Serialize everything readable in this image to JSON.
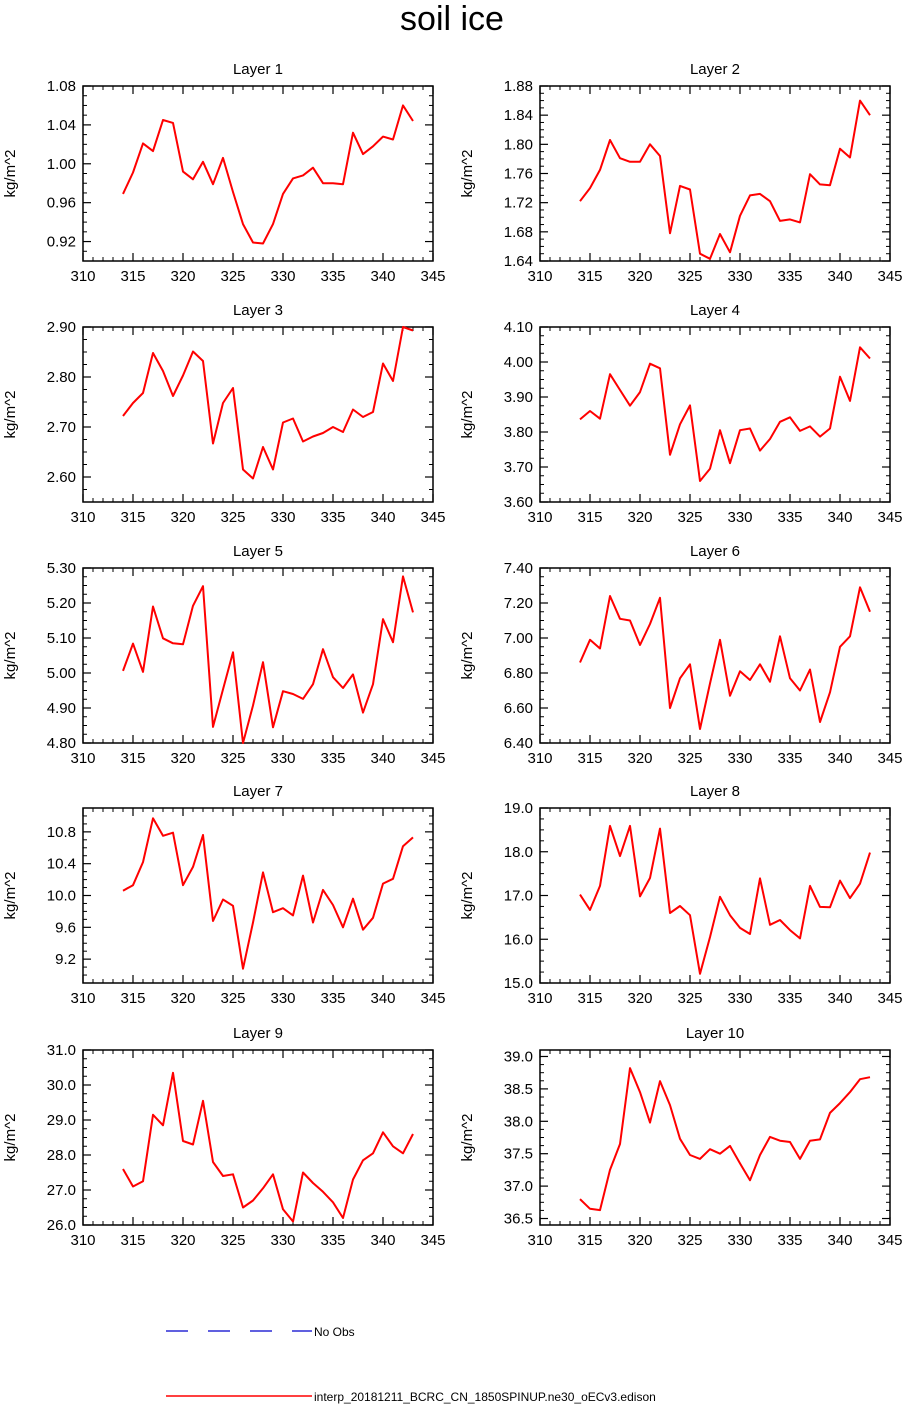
{
  "page": {
    "title": "soil ice"
  },
  "legend": {
    "items": [
      {
        "label": "No Obs",
        "color": "#0000cc",
        "style": "dashed"
      },
      {
        "label": "interp_20181211_BCRC_CN_1850SPINUP.ne30_oECv3.edison",
        "color": "#ff0000",
        "style": "solid"
      }
    ]
  },
  "chart_data": [
    {
      "type": "line",
      "title": "Layer 1",
      "ylabel": "kg/m^2",
      "xlabel": "",
      "xlim": [
        310,
        345
      ],
      "ylim": [
        0.9,
        1.08
      ],
      "xticks": [
        "310",
        "315",
        "320",
        "325",
        "330",
        "335",
        "340",
        "345"
      ],
      "yticks": [
        "0.92",
        "0.96",
        "1.00",
        "1.04",
        "1.08"
      ],
      "x": [
        314,
        315,
        316,
        317,
        318,
        319,
        320,
        321,
        322,
        323,
        324,
        325,
        326,
        327,
        328,
        329,
        330,
        331,
        332,
        333,
        334,
        335,
        336,
        337,
        338,
        339,
        340,
        341,
        342,
        343
      ],
      "series": [
        {
          "name": "interp_20181211_BCRC_CN_1850SPINUP.ne30_oECv3.edison",
          "color": "#ff0000",
          "values": [
            0.969,
            0.991,
            1.021,
            1.013,
            1.045,
            1.042,
            0.992,
            0.984,
            1.002,
            0.979,
            1.006,
            0.971,
            0.938,
            0.919,
            0.918,
            0.938,
            0.969,
            0.985,
            0.988,
            0.996,
            0.98,
            0.98,
            0.979,
            1.032,
            1.01,
            1.018,
            1.028,
            1.025,
            1.06,
            1.044
          ]
        }
      ]
    },
    {
      "type": "line",
      "title": "Layer 2",
      "ylabel": "kg/m^2",
      "xlabel": "",
      "xlim": [
        310,
        345
      ],
      "ylim": [
        1.64,
        1.88
      ],
      "xticks": [
        "310",
        "315",
        "320",
        "325",
        "330",
        "335",
        "340",
        "345"
      ],
      "yticks": [
        "1.64",
        "1.68",
        "1.72",
        "1.76",
        "1.80",
        "1.84",
        "1.88"
      ],
      "x": [
        314,
        315,
        316,
        317,
        318,
        319,
        320,
        321,
        322,
        323,
        324,
        325,
        326,
        327,
        328,
        329,
        330,
        331,
        332,
        333,
        334,
        335,
        336,
        337,
        338,
        339,
        340,
        341,
        342,
        343
      ],
      "series": [
        {
          "name": "interp_20181211_BCRC_CN_1850SPINUP.ne30_oECv3.edison",
          "color": "#ff0000",
          "values": [
            1.722,
            1.74,
            1.765,
            1.806,
            1.781,
            1.776,
            1.776,
            1.8,
            1.784,
            1.678,
            1.743,
            1.738,
            1.65,
            1.643,
            1.677,
            1.652,
            1.702,
            1.73,
            1.732,
            1.722,
            1.695,
            1.697,
            1.693,
            1.759,
            1.745,
            1.744,
            1.794,
            1.782,
            1.86,
            1.84
          ]
        }
      ]
    },
    {
      "type": "line",
      "title": "Layer 3",
      "ylabel": "kg/m^2",
      "xlabel": "",
      "xlim": [
        310,
        345
      ],
      "ylim": [
        2.55,
        2.9
      ],
      "xticks": [
        "310",
        "315",
        "320",
        "325",
        "330",
        "335",
        "340",
        "345"
      ],
      "yticks": [
        "2.60",
        "2.70",
        "2.80",
        "2.90"
      ],
      "x": [
        314,
        315,
        316,
        317,
        318,
        319,
        320,
        321,
        322,
        323,
        324,
        325,
        326,
        327,
        328,
        329,
        330,
        331,
        332,
        333,
        334,
        335,
        336,
        337,
        338,
        339,
        340,
        341,
        342,
        343
      ],
      "series": [
        {
          "name": "interp_20181211_BCRC_CN_1850SPINUP.ne30_oECv3.edison",
          "color": "#ff0000",
          "values": [
            2.722,
            2.748,
            2.768,
            2.848,
            2.812,
            2.762,
            2.803,
            2.851,
            2.832,
            2.667,
            2.748,
            2.778,
            2.615,
            2.597,
            2.66,
            2.615,
            2.709,
            2.717,
            2.671,
            2.681,
            2.688,
            2.7,
            2.69,
            2.735,
            2.72,
            2.73,
            2.827,
            2.792,
            2.9,
            2.893
          ]
        }
      ]
    },
    {
      "type": "line",
      "title": "Layer 4",
      "ylabel": "kg/m^2",
      "xlabel": "",
      "xlim": [
        310,
        345
      ],
      "ylim": [
        3.6,
        4.1
      ],
      "xticks": [
        "310",
        "315",
        "320",
        "325",
        "330",
        "335",
        "340",
        "345"
      ],
      "yticks": [
        "3.60",
        "3.70",
        "3.80",
        "3.90",
        "4.00",
        "4.10"
      ],
      "x": [
        314,
        315,
        316,
        317,
        318,
        319,
        320,
        321,
        322,
        323,
        324,
        325,
        326,
        327,
        328,
        329,
        330,
        331,
        332,
        333,
        334,
        335,
        336,
        337,
        338,
        339,
        340,
        341,
        342,
        343
      ],
      "series": [
        {
          "name": "interp_20181211_BCRC_CN_1850SPINUP.ne30_oECv3.edison",
          "color": "#ff0000",
          "values": [
            3.836,
            3.86,
            3.838,
            3.965,
            3.92,
            3.875,
            3.914,
            3.995,
            3.982,
            3.735,
            3.822,
            3.876,
            3.66,
            3.695,
            3.805,
            3.711,
            3.805,
            3.81,
            3.747,
            3.78,
            3.829,
            3.842,
            3.803,
            3.816,
            3.787,
            3.81,
            3.958,
            3.889,
            4.042,
            4.01
          ]
        }
      ]
    },
    {
      "type": "line",
      "title": "Layer 5",
      "ylabel": "kg/m^2",
      "xlabel": "",
      "xlim": [
        310,
        345
      ],
      "ylim": [
        4.8,
        5.3
      ],
      "xticks": [
        "310",
        "315",
        "320",
        "325",
        "330",
        "335",
        "340",
        "345"
      ],
      "yticks": [
        "4.80",
        "4.90",
        "5.00",
        "5.10",
        "5.20",
        "5.30"
      ],
      "x": [
        314,
        315,
        316,
        317,
        318,
        319,
        320,
        321,
        322,
        323,
        324,
        325,
        326,
        327,
        328,
        329,
        330,
        331,
        332,
        333,
        334,
        335,
        336,
        337,
        338,
        339,
        340,
        341,
        342,
        343
      ],
      "series": [
        {
          "name": "interp_20181211_BCRC_CN_1850SPINUP.ne30_oECv3.edison",
          "color": "#ff0000",
          "values": [
            5.006,
            5.084,
            5.003,
            5.19,
            5.099,
            5.085,
            5.082,
            5.192,
            5.248,
            4.846,
            4.953,
            5.059,
            4.8,
            4.907,
            5.031,
            4.845,
            4.948,
            4.94,
            4.926,
            4.968,
            5.068,
            4.988,
            4.957,
            4.996,
            4.887,
            4.968,
            5.154,
            5.088,
            5.276,
            5.173
          ]
        }
      ]
    },
    {
      "type": "line",
      "title": "Layer 6",
      "ylabel": "kg/m^2",
      "xlabel": "",
      "xlim": [
        310,
        345
      ],
      "ylim": [
        6.4,
        7.4
      ],
      "xticks": [
        "310",
        "315",
        "320",
        "325",
        "330",
        "335",
        "340",
        "345"
      ],
      "yticks": [
        "6.40",
        "6.60",
        "6.80",
        "7.00",
        "7.20",
        "7.40"
      ],
      "x": [
        314,
        315,
        316,
        317,
        318,
        319,
        320,
        321,
        322,
        323,
        324,
        325,
        326,
        327,
        328,
        329,
        330,
        331,
        332,
        333,
        334,
        335,
        336,
        337,
        338,
        339,
        340,
        341,
        342,
        343
      ],
      "series": [
        {
          "name": "interp_20181211_BCRC_CN_1850SPINUP.ne30_oECv3.edison",
          "color": "#ff0000",
          "values": [
            6.86,
            6.99,
            6.94,
            7.24,
            7.11,
            7.1,
            6.96,
            7.08,
            7.23,
            6.6,
            6.77,
            6.85,
            6.48,
            6.74,
            6.99,
            6.67,
            6.81,
            6.76,
            6.85,
            6.75,
            7.01,
            6.77,
            6.7,
            6.82,
            6.52,
            6.69,
            6.95,
            7.01,
            7.29,
            7.15
          ]
        }
      ]
    },
    {
      "type": "line",
      "title": "Layer 7",
      "ylabel": "kg/m^2",
      "xlabel": "",
      "xlim": [
        310,
        345
      ],
      "ylim": [
        8.9,
        11.1
      ],
      "xticks": [
        "310",
        "315",
        "320",
        "325",
        "330",
        "335",
        "340",
        "345"
      ],
      "yticks": [
        "9.2",
        "9.6",
        "10.0",
        "10.4",
        "10.8"
      ],
      "x": [
        314,
        315,
        316,
        317,
        318,
        319,
        320,
        321,
        322,
        323,
        324,
        325,
        326,
        327,
        328,
        329,
        330,
        331,
        332,
        333,
        334,
        335,
        336,
        337,
        338,
        339,
        340,
        341,
        342,
        343
      ],
      "series": [
        {
          "name": "interp_20181211_BCRC_CN_1850SPINUP.ne30_oECv3.edison",
          "color": "#ff0000",
          "values": [
            10.06,
            10.13,
            10.42,
            10.97,
            10.75,
            10.79,
            10.13,
            10.36,
            10.76,
            9.68,
            9.95,
            9.87,
            9.08,
            9.66,
            10.29,
            9.79,
            9.84,
            9.75,
            10.25,
            9.66,
            10.07,
            9.88,
            9.6,
            9.96,
            9.57,
            9.72,
            10.15,
            10.21,
            10.62,
            10.73
          ]
        }
      ]
    },
    {
      "type": "line",
      "title": "Layer 8",
      "ylabel": "kg/m^2",
      "xlabel": "",
      "xlim": [
        310,
        345
      ],
      "ylim": [
        15.0,
        19.0
      ],
      "xticks": [
        "310",
        "315",
        "320",
        "325",
        "330",
        "335",
        "340",
        "345"
      ],
      "yticks": [
        "15.0",
        "16.0",
        "17.0",
        "18.0",
        "19.0"
      ],
      "x": [
        314,
        315,
        316,
        317,
        318,
        319,
        320,
        321,
        322,
        323,
        324,
        325,
        326,
        327,
        328,
        329,
        330,
        331,
        332,
        333,
        334,
        335,
        336,
        337,
        338,
        339,
        340,
        341,
        342,
        343
      ],
      "series": [
        {
          "name": "interp_20181211_BCRC_CN_1850SPINUP.ne30_oECv3.edison",
          "color": "#ff0000",
          "values": [
            17.02,
            16.67,
            17.22,
            18.59,
            17.9,
            18.59,
            16.98,
            17.4,
            18.53,
            16.6,
            16.76,
            16.55,
            15.21,
            16.05,
            16.97,
            16.55,
            16.26,
            16.12,
            17.39,
            16.33,
            16.44,
            16.21,
            16.02,
            17.22,
            16.74,
            16.73,
            17.34,
            16.94,
            17.27,
            17.98
          ]
        }
      ]
    },
    {
      "type": "line",
      "title": "Layer 9",
      "ylabel": "kg/m^2",
      "xlabel": "",
      "xlim": [
        310,
        345
      ],
      "ylim": [
        26.0,
        31.0
      ],
      "xticks": [
        "310",
        "315",
        "320",
        "325",
        "330",
        "335",
        "340",
        "345"
      ],
      "yticks": [
        "26.0",
        "27.0",
        "28.0",
        "29.0",
        "30.0",
        "31.0"
      ],
      "x": [
        314,
        315,
        316,
        317,
        318,
        319,
        320,
        321,
        322,
        323,
        324,
        325,
        326,
        327,
        328,
        329,
        330,
        331,
        332,
        333,
        334,
        335,
        336,
        337,
        338,
        339,
        340,
        341,
        342,
        343
      ],
      "series": [
        {
          "name": "interp_20181211_BCRC_CN_1850SPINUP.ne30_oECv3.edison",
          "color": "#ff0000",
          "values": [
            27.6,
            27.1,
            27.25,
            29.15,
            28.85,
            30.35,
            28.4,
            28.3,
            29.55,
            27.8,
            27.4,
            27.45,
            26.5,
            26.7,
            27.05,
            27.45,
            26.45,
            26.1,
            27.5,
            27.2,
            26.95,
            26.65,
            26.2,
            27.3,
            27.85,
            28.05,
            28.65,
            28.25,
            28.05,
            28.6
          ]
        }
      ]
    },
    {
      "type": "line",
      "title": "Layer 10",
      "ylabel": "kg/m^2",
      "xlabel": "",
      "xlim": [
        310,
        345
      ],
      "ylim": [
        36.4,
        39.1
      ],
      "xticks": [
        "310",
        "315",
        "320",
        "325",
        "330",
        "335",
        "340",
        "345"
      ],
      "yticks": [
        "36.5",
        "37.0",
        "37.5",
        "38.0",
        "38.5",
        "39.0"
      ],
      "x": [
        314,
        315,
        316,
        317,
        318,
        319,
        320,
        321,
        322,
        323,
        324,
        325,
        326,
        327,
        328,
        329,
        330,
        331,
        332,
        333,
        334,
        335,
        336,
        337,
        338,
        339,
        340,
        341,
        342,
        343
      ],
      "series": [
        {
          "name": "interp_20181211_BCRC_CN_1850SPINUP.ne30_oECv3.edison",
          "color": "#ff0000",
          "values": [
            36.8,
            36.65,
            36.63,
            37.25,
            37.65,
            38.82,
            38.45,
            37.98,
            38.62,
            38.25,
            37.73,
            37.48,
            37.42,
            37.57,
            37.5,
            37.62,
            37.35,
            37.09,
            37.48,
            37.76,
            37.7,
            37.68,
            37.42,
            37.7,
            37.72,
            38.13,
            38.28,
            38.45,
            38.65,
            38.68
          ]
        }
      ]
    }
  ]
}
